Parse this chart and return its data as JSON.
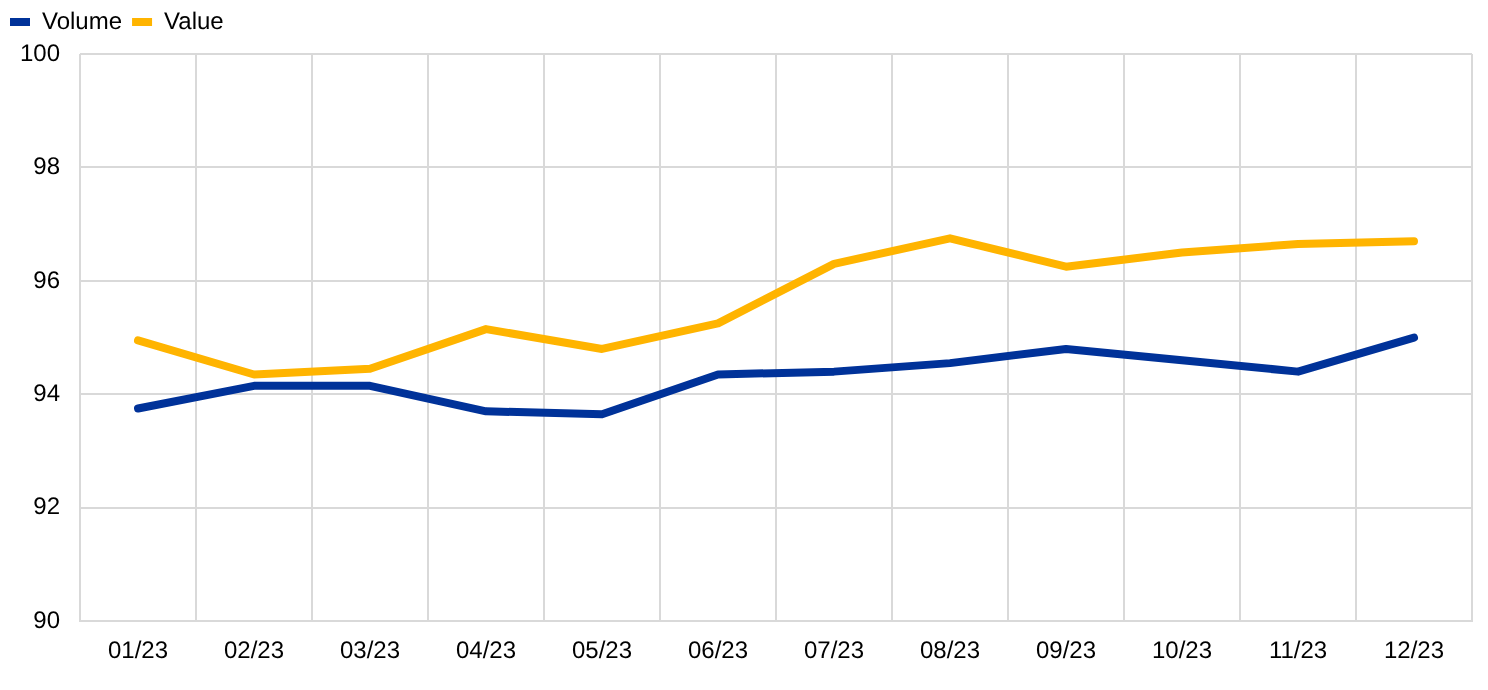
{
  "chart_data": {
    "type": "line",
    "categories": [
      "01/23",
      "02/23",
      "03/23",
      "04/23",
      "05/23",
      "06/23",
      "07/23",
      "08/23",
      "09/23",
      "10/23",
      "11/23",
      "12/23"
    ],
    "series": [
      {
        "name": "Volume",
        "color": "#003299",
        "values": [
          93.75,
          94.15,
          94.15,
          93.7,
          93.65,
          94.35,
          94.4,
          94.55,
          94.8,
          94.6,
          94.4,
          95.0
        ]
      },
      {
        "name": "Value",
        "color": "#ffb400",
        "values": [
          94.95,
          94.35,
          94.45,
          95.15,
          94.8,
          95.25,
          96.3,
          96.75,
          96.25,
          96.5,
          96.65,
          96.7
        ]
      }
    ],
    "ylim": [
      90,
      100
    ],
    "yticks": [
      90,
      92,
      94,
      96,
      98,
      100
    ],
    "grid": true,
    "legend": "top left",
    "marker": "none",
    "line_style": "solid"
  }
}
